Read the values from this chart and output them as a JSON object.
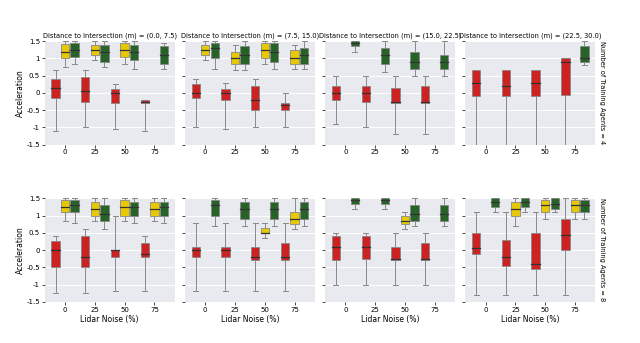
{
  "col_titles": [
    "Distance to Intersection (m) = (0.0, 7.5)",
    "Distance to Intersection (m) = (7.5, 15.0)",
    "Distance to Intersection (m) = (15.0, 22.5)",
    "Distance to Intersection (m) = (22.5, 30.0)"
  ],
  "row_labels": [
    "Number of Training Agents = 4",
    "Number of Training Agents = 8"
  ],
  "xlabel": "Lidar Noise (%)",
  "ylabel": "Acceleration",
  "xtick_vals": [
    0,
    25,
    50,
    75
  ],
  "xtick_labels": [
    "0",
    "25",
    "50",
    "75"
  ],
  "ylim": [
    -1.5,
    1.5
  ],
  "yticks": [
    -1.5,
    -1.0,
    -0.5,
    0.0,
    0.5,
    1.0,
    1.5
  ],
  "green": "#276227",
  "yellow": "#e8c800",
  "red": "#cc2222",
  "bg_color": "#e8eaf0",
  "boxes": {
    "r0c0": {
      "n0": {
        "r": [
          -1.1,
          -0.15,
          0.15,
          0.4,
          0.65
        ],
        "y": [
          0.75,
          1.0,
          1.2,
          1.42,
          1.5
        ],
        "g": [
          0.85,
          1.05,
          1.25,
          1.45,
          1.5
        ]
      },
      "n25": {
        "r": [
          -1.0,
          -0.25,
          0.05,
          0.45,
          0.65
        ],
        "y": [
          0.95,
          1.1,
          1.25,
          1.4,
          1.5
        ],
        "g": [
          0.75,
          0.9,
          1.2,
          1.4,
          1.5
        ]
      },
      "n50": {
        "r": [
          -1.05,
          -0.3,
          -0.0,
          0.1,
          0.25
        ],
        "y": [
          0.85,
          1.05,
          1.25,
          1.45,
          1.5
        ],
        "g": [
          0.7,
          0.95,
          1.2,
          1.4,
          1.5
        ]
      },
      "n75": {
        "r": [
          -1.1,
          -0.28,
          -0.25,
          -0.2,
          -0.2
        ],
        "y": null,
        "g": [
          0.7,
          0.85,
          1.1,
          1.35,
          1.45
        ]
      }
    },
    "r0c1": {
      "n0": {
        "r": [
          -1.0,
          -0.15,
          0.0,
          0.25,
          0.4
        ],
        "y": [
          0.95,
          1.1,
          1.25,
          1.4,
          1.5
        ],
        "g": [
          0.7,
          1.0,
          1.3,
          1.45,
          1.5
        ]
      },
      "n25": {
        "r": [
          -1.05,
          -0.2,
          0.0,
          0.1,
          0.3
        ],
        "y": [
          0.65,
          0.85,
          1.0,
          1.2,
          1.4
        ],
        "g": [
          0.65,
          0.85,
          1.1,
          1.35,
          1.5
        ]
      },
      "n50": {
        "r": [
          -1.0,
          -0.5,
          -0.2,
          0.2,
          0.4
        ],
        "y": [
          0.85,
          1.0,
          1.25,
          1.45,
          1.5
        ],
        "g": [
          0.7,
          0.9,
          1.2,
          1.45,
          1.5
        ]
      },
      "n75": {
        "r": [
          -1.0,
          -0.5,
          -0.35,
          -0.3,
          0.0
        ],
        "y": [
          0.7,
          0.85,
          1.0,
          1.25,
          1.4
        ],
        "g": [
          0.7,
          0.85,
          1.1,
          1.3,
          1.5
        ]
      }
    },
    "r0c2": {
      "n0": {
        "r": [
          -0.9,
          -0.2,
          0.0,
          0.2,
          0.5
        ],
        "y": null,
        "g": [
          1.2,
          1.35,
          1.45,
          1.5,
          1.5
        ]
      },
      "n25": {
        "r": [
          -1.0,
          -0.25,
          0.0,
          0.2,
          0.5
        ],
        "y": null,
        "g": [
          0.6,
          0.85,
          1.1,
          1.3,
          1.5
        ]
      },
      "n50": {
        "r": [
          -1.2,
          -0.3,
          -0.25,
          0.15,
          0.5
        ],
        "y": null,
        "g": [
          0.5,
          0.7,
          0.9,
          1.2,
          1.5
        ]
      },
      "n75": {
        "r": [
          -1.2,
          -0.3,
          -0.25,
          0.2,
          0.5
        ],
        "y": null,
        "g": [
          0.5,
          0.7,
          0.9,
          1.1,
          1.5
        ]
      }
    },
    "r0c3": {
      "n0": {
        "r": [
          -1.5,
          -0.1,
          0.3,
          0.65,
          0.5
        ],
        "y": null,
        "g": null
      },
      "n25": {
        "r": [
          -1.5,
          -0.1,
          0.2,
          0.65,
          0.5
        ],
        "y": null,
        "g": null
      },
      "n50": {
        "r": [
          -1.5,
          -0.1,
          0.3,
          0.65,
          0.5
        ],
        "y": null,
        "g": null
      },
      "n75": {
        "r": [
          -1.5,
          -0.05,
          0.9,
          1.0,
          1.0
        ],
        "y": null,
        "g": [
          0.8,
          0.9,
          1.0,
          1.35,
          1.5
        ]
      }
    },
    "r1c0": {
      "n0": {
        "r": [
          -1.25,
          -0.5,
          0.0,
          0.25,
          0.4
        ],
        "y": [
          0.85,
          1.1,
          1.25,
          1.45,
          1.5
        ],
        "g": [
          0.8,
          1.1,
          1.3,
          1.45,
          1.5
        ]
      },
      "n25": {
        "r": [
          -1.25,
          -0.5,
          -0.2,
          0.4,
          0.6
        ],
        "y": [
          0.85,
          1.0,
          1.2,
          1.4,
          1.5
        ],
        "g": [
          0.6,
          0.85,
          1.05,
          1.3,
          1.5
        ]
      },
      "n50": {
        "r": [
          -1.2,
          -0.2,
          -0.0,
          0.0,
          1.0
        ],
        "y": [
          0.85,
          1.0,
          1.25,
          1.45,
          1.5
        ],
        "g": [
          0.8,
          1.0,
          1.25,
          1.4,
          1.5
        ]
      },
      "n75": {
        "r": [
          -1.2,
          -0.2,
          -0.1,
          0.2,
          0.4
        ],
        "y": [
          0.85,
          1.0,
          1.2,
          1.4,
          1.5
        ],
        "g": [
          0.8,
          1.0,
          1.25,
          1.4,
          1.5
        ]
      }
    },
    "r1c1": {
      "n0": {
        "r": [
          -1.2,
          -0.2,
          0.0,
          0.1,
          0.8
        ],
        "y": null,
        "g": [
          0.7,
          1.0,
          1.3,
          1.45,
          1.5
        ]
      },
      "n25": {
        "r": [
          -1.2,
          -0.2,
          0.0,
          0.1,
          0.8
        ],
        "y": null,
        "g": [
          0.7,
          0.9,
          1.2,
          1.4,
          1.5
        ]
      },
      "n50": {
        "r": [
          -1.2,
          -0.3,
          -0.2,
          0.1,
          0.8
        ],
        "y": [
          0.35,
          0.5,
          0.5,
          0.65,
          0.8
        ],
        "g": [
          0.7,
          0.9,
          1.2,
          1.4,
          1.5
        ]
      },
      "n75": {
        "r": [
          -1.2,
          -0.3,
          -0.2,
          0.2,
          0.8
        ],
        "y": [
          0.6,
          0.75,
          0.9,
          1.1,
          1.5
        ],
        "g": [
          0.7,
          0.9,
          1.2,
          1.4,
          1.5
        ]
      }
    },
    "r1c2": {
      "n0": {
        "r": [
          -1.0,
          -0.3,
          0.1,
          0.4,
          0.5
        ],
        "y": null,
        "g": [
          1.2,
          1.35,
          1.45,
          1.5,
          1.5
        ]
      },
      "n25": {
        "r": [
          -1.0,
          -0.25,
          0.1,
          0.4,
          0.5
        ],
        "y": null,
        "g": [
          1.2,
          1.35,
          1.45,
          1.5,
          1.5
        ]
      },
      "n50": {
        "r": [
          -1.0,
          -0.3,
          -0.25,
          0.1,
          0.5
        ],
        "y": [
          0.6,
          0.75,
          0.85,
          1.0,
          1.1
        ],
        "g": [
          0.7,
          0.85,
          1.05,
          1.3,
          1.5
        ]
      },
      "n75": {
        "r": [
          -1.0,
          -0.3,
          -0.25,
          0.2,
          0.5
        ],
        "y": null,
        "g": [
          0.7,
          0.85,
          1.05,
          1.3,
          1.5
        ]
      }
    },
    "r1c3": {
      "n0": {
        "r": [
          -1.3,
          -0.1,
          0.05,
          0.5,
          1.1
        ],
        "y": null,
        "g": [
          1.1,
          1.25,
          1.4,
          1.5,
          1.5
        ]
      },
      "n25": {
        "r": [
          -1.3,
          -0.45,
          -0.2,
          0.3,
          1.1
        ],
        "y": [
          0.7,
          1.0,
          1.2,
          1.4,
          1.5
        ],
        "g": [
          1.1,
          1.25,
          1.4,
          1.5,
          1.5
        ]
      },
      "n50": {
        "r": [
          -1.3,
          -0.55,
          -0.4,
          0.5,
          1.1
        ],
        "y": [
          0.9,
          1.1,
          1.3,
          1.45,
          1.5
        ],
        "g": [
          1.1,
          1.2,
          1.35,
          1.5,
          1.5
        ]
      },
      "n75": {
        "r": [
          -1.3,
          -0.0,
          0.45,
          0.9,
          1.5
        ],
        "y": [
          0.9,
          1.1,
          1.3,
          1.45,
          1.5
        ],
        "g": [
          0.9,
          1.1,
          1.3,
          1.45,
          1.5
        ]
      }
    }
  }
}
